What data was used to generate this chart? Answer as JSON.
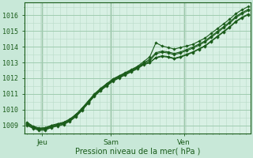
{
  "bg_color": "#c8e8d8",
  "plot_bg_color": "#d8f0e4",
  "grid_color": "#a0ccb0",
  "minor_grid_color": "#b8dcc8",
  "line_color": "#1a5c1a",
  "marker_color": "#1a5c1a",
  "ylabel_text": "Pression niveau de la mer( hPa )",
  "ylim": [
    1008.5,
    1016.8
  ],
  "yticks": [
    1009,
    1010,
    1011,
    1012,
    1013,
    1014,
    1015,
    1016
  ],
  "day_labels": [
    "Jeu",
    "Sam",
    "Ven"
  ],
  "day_positions": [
    0.07,
    0.38,
    0.71
  ],
  "n_points": 37,
  "series": [
    [
      1009.2,
      1008.95,
      1008.82,
      1008.85,
      1009.0,
      1009.1,
      1009.2,
      1009.4,
      1009.7,
      1010.1,
      1010.55,
      1011.0,
      1011.35,
      1011.65,
      1011.95,
      1012.15,
      1012.35,
      1012.55,
      1012.75,
      1013.05,
      1013.35,
      1014.25,
      1014.05,
      1013.95,
      1013.85,
      1013.95,
      1014.05,
      1014.15,
      1014.35,
      1014.55,
      1014.85,
      1015.15,
      1015.45,
      1015.75,
      1016.1,
      1016.35,
      1016.55
    ],
    [
      1009.1,
      1008.88,
      1008.76,
      1008.78,
      1008.93,
      1009.03,
      1009.13,
      1009.33,
      1009.63,
      1010.03,
      1010.48,
      1010.93,
      1011.28,
      1011.58,
      1011.88,
      1012.08,
      1012.28,
      1012.48,
      1012.68,
      1012.93,
      1013.1,
      1013.55,
      1013.65,
      1013.6,
      1013.5,
      1013.6,
      1013.75,
      1013.9,
      1014.1,
      1014.3,
      1014.6,
      1014.9,
      1015.2,
      1015.5,
      1015.85,
      1016.1,
      1016.3
    ],
    [
      1009.0,
      1008.8,
      1008.68,
      1008.7,
      1008.85,
      1008.95,
      1009.05,
      1009.25,
      1009.55,
      1009.95,
      1010.4,
      1010.85,
      1011.2,
      1011.5,
      1011.8,
      1012.0,
      1012.2,
      1012.4,
      1012.6,
      1012.85,
      1012.98,
      1013.32,
      1013.42,
      1013.37,
      1013.27,
      1013.37,
      1013.52,
      1013.67,
      1013.87,
      1014.07,
      1014.37,
      1014.67,
      1014.97,
      1015.27,
      1015.62,
      1015.87,
      1016.07
    ],
    [
      1009.05,
      1008.83,
      1008.71,
      1008.73,
      1008.88,
      1008.98,
      1009.08,
      1009.28,
      1009.58,
      1009.98,
      1010.43,
      1010.88,
      1011.23,
      1011.53,
      1011.83,
      1012.03,
      1012.23,
      1012.43,
      1012.63,
      1012.88,
      1013.01,
      1013.28,
      1013.38,
      1013.33,
      1013.23,
      1013.33,
      1013.48,
      1013.63,
      1013.83,
      1014.03,
      1014.33,
      1014.63,
      1014.93,
      1015.23,
      1015.58,
      1015.83,
      1016.03
    ],
    [
      1009.15,
      1008.9,
      1008.79,
      1008.81,
      1008.96,
      1009.06,
      1009.16,
      1009.36,
      1009.66,
      1010.06,
      1010.51,
      1010.96,
      1011.31,
      1011.61,
      1011.91,
      1012.11,
      1012.31,
      1012.51,
      1012.71,
      1012.96,
      1013.2,
      1013.62,
      1013.72,
      1013.67,
      1013.57,
      1013.67,
      1013.82,
      1013.97,
      1014.17,
      1014.37,
      1014.67,
      1014.97,
      1015.27,
      1015.57,
      1015.92,
      1016.17,
      1016.37
    ]
  ]
}
